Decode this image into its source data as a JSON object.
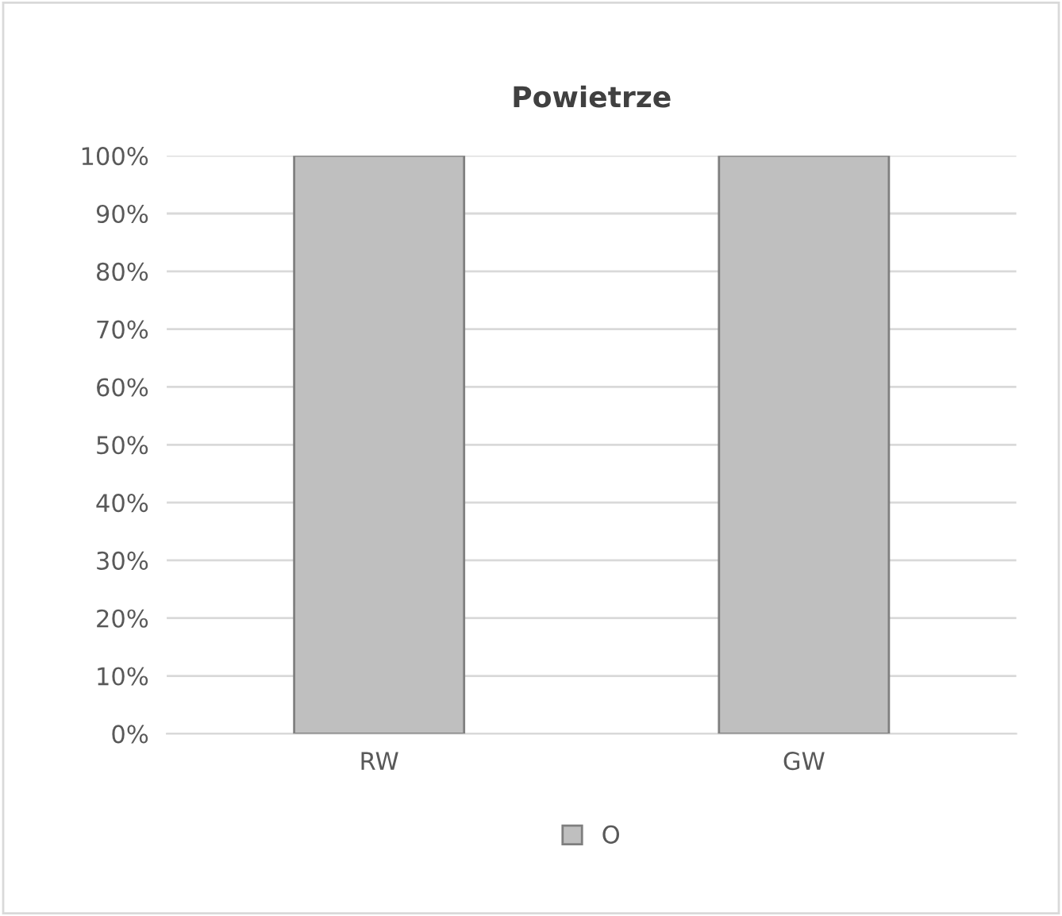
{
  "chart_data": {
    "type": "bar",
    "title": "Powietrze",
    "categories": [
      "RW",
      "GW"
    ],
    "series": [
      {
        "name": "O",
        "color": "#bfbfbf",
        "values": [
          100,
          100
        ]
      }
    ],
    "ylim": [
      0,
      100
    ],
    "yticks": [
      {
        "value": 0,
        "label": "0%"
      },
      {
        "value": 10,
        "label": "10%"
      },
      {
        "value": 20,
        "label": "20%"
      },
      {
        "value": 30,
        "label": "30%"
      },
      {
        "value": 40,
        "label": "40%"
      },
      {
        "value": 50,
        "label": "50%"
      },
      {
        "value": 60,
        "label": "60%"
      },
      {
        "value": 70,
        "label": "70%"
      },
      {
        "value": 80,
        "label": "80%"
      },
      {
        "value": 90,
        "label": "90%"
      },
      {
        "value": 100,
        "label": "100%"
      }
    ],
    "grid": "y",
    "legend": "bottom"
  }
}
